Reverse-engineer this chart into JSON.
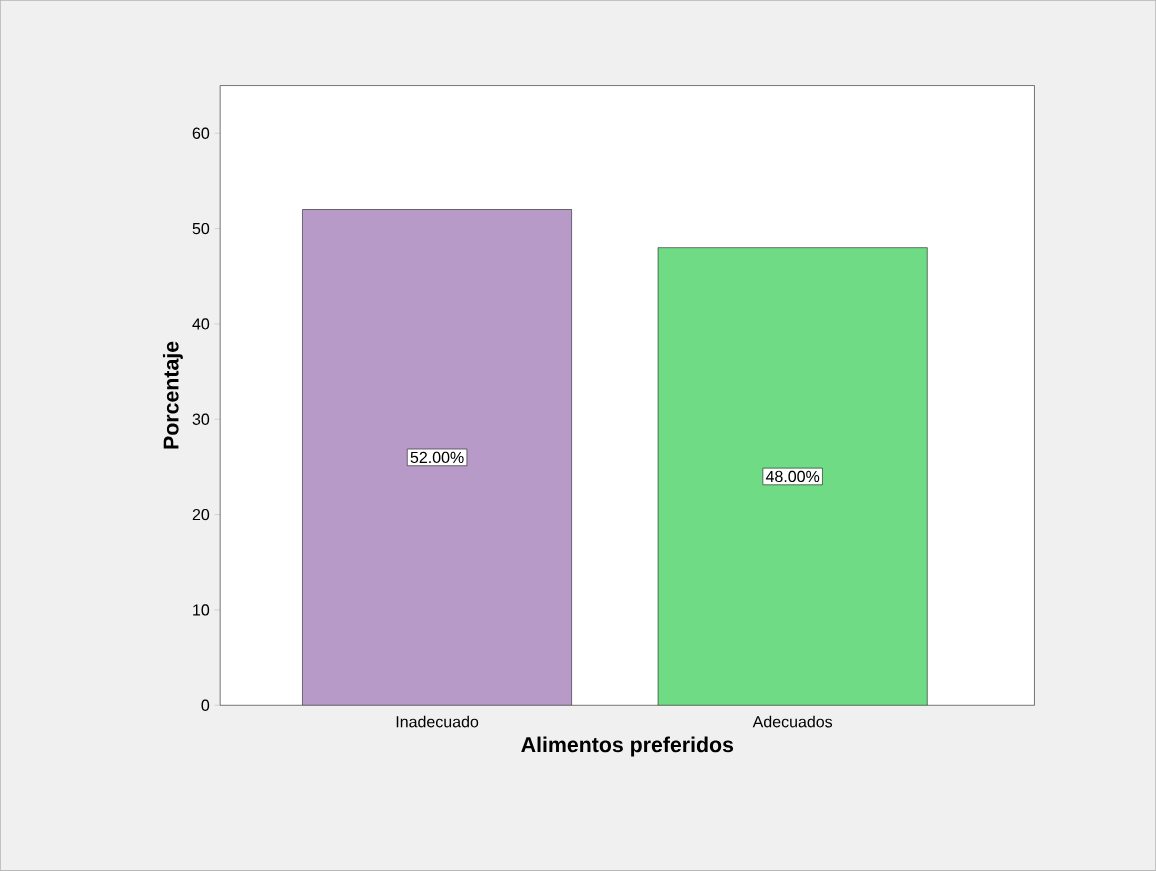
{
  "chart_data": {
    "type": "bar",
    "xlabel": "Alimentos preferidos",
    "ylabel": "Porcentaje",
    "categories": [
      "Inadecuado",
      "Adecuados"
    ],
    "values": [
      52,
      48
    ],
    "colors": [
      "#b89ac8",
      "#6fdc85"
    ],
    "value_labels": [
      "52.00%",
      "48.00%"
    ],
    "ylim": [
      0,
      65
    ],
    "yticks": [
      0,
      10,
      20,
      30,
      40,
      50,
      60
    ],
    "grid": false
  }
}
